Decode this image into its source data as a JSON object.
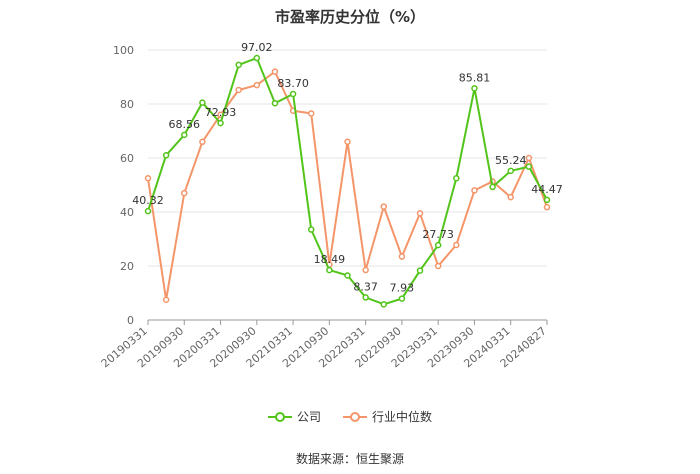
{
  "chart_data": {
    "type": "line",
    "title": "市盈率历史分位（%）",
    "xlabel": "",
    "ylabel": "",
    "ylim": [
      0,
      100
    ],
    "yticks": [
      0,
      20,
      40,
      60,
      80,
      100
    ],
    "grid": true,
    "legend_position": "bottom",
    "x": [
      "20190331",
      "20190630",
      "20190930",
      "20191231",
      "20200331",
      "20200630",
      "20200930",
      "20201231",
      "20210331",
      "20210630",
      "20210930",
      "20211231",
      "20220331",
      "20220630",
      "20220930",
      "20221231",
      "20230331",
      "20230630",
      "20230930",
      "20231231",
      "20240331",
      "20240630",
      "20240827"
    ],
    "x_tick_labels": [
      "20190331",
      "20190930",
      "20200331",
      "20200930",
      "20210331",
      "20210930",
      "20220331",
      "20220930",
      "20230331",
      "20230930",
      "20240331",
      "20240827"
    ],
    "series": [
      {
        "name": "公司",
        "color": "#52c41a",
        "values": [
          40.32,
          61.0,
          68.56,
          80.5,
          72.93,
          94.5,
          97.02,
          80.3,
          83.7,
          33.5,
          18.49,
          16.5,
          8.37,
          5.8,
          7.93,
          18.3,
          27.73,
          52.5,
          85.81,
          49.3,
          55.24,
          56.8,
          44.47
        ],
        "labels": {
          "0": "40.32",
          "2": "68.56",
          "4": "72.93",
          "6": "97.02",
          "8": "83.70",
          "10": "18.49",
          "12": "8.37",
          "14": "7.93",
          "16": "27.73",
          "18": "85.81",
          "20": "55.24",
          "22": "44.47"
        }
      },
      {
        "name": "行业中位数",
        "color": "#f4956a",
        "values": [
          52.5,
          7.5,
          47.0,
          66.0,
          76.0,
          85.2,
          87.0,
          92.0,
          77.5,
          76.5,
          20.5,
          66.0,
          18.5,
          42.0,
          23.5,
          39.5,
          20.0,
          27.8,
          48.0,
          51.3,
          45.5,
          60.0,
          41.8
        ]
      }
    ],
    "source": "数据来源：恒生聚源"
  }
}
